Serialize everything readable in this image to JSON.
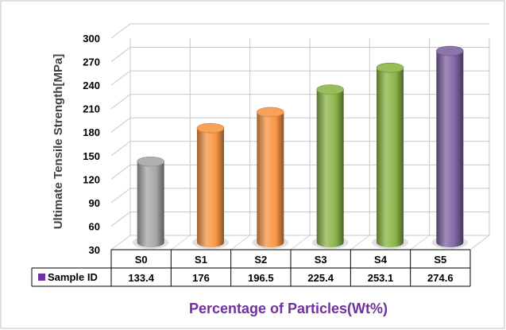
{
  "chart_data": {
    "type": "bar",
    "categories": [
      "S0",
      "S1",
      "S2",
      "S3",
      "S4",
      "S5"
    ],
    "series": [
      {
        "name": "Sample ID",
        "values": [
          133.4,
          176,
          196.5,
          225.4,
          253.1,
          274.6
        ]
      }
    ],
    "value_labels": [
      "133.4",
      "176",
      "196.5",
      "225.4",
      "253.1",
      "274.6"
    ],
    "bar_colors": [
      "#a6a6a6",
      "#f79646",
      "#f79646",
      "#8cb548",
      "#8cb548",
      "#8064a2"
    ],
    "legend_marker_color": "#7030a0",
    "xlabel": "Percentage of Particles(Wt%)",
    "ylabel": "Ultimate Tensile Strength[MPa]",
    "ylim": [
      30,
      300
    ],
    "yticks": [
      30,
      60,
      90,
      120,
      150,
      180,
      210,
      240,
      270,
      300
    ],
    "grid": true,
    "style": "3d-cylinder",
    "legend": "data-table-row"
  }
}
